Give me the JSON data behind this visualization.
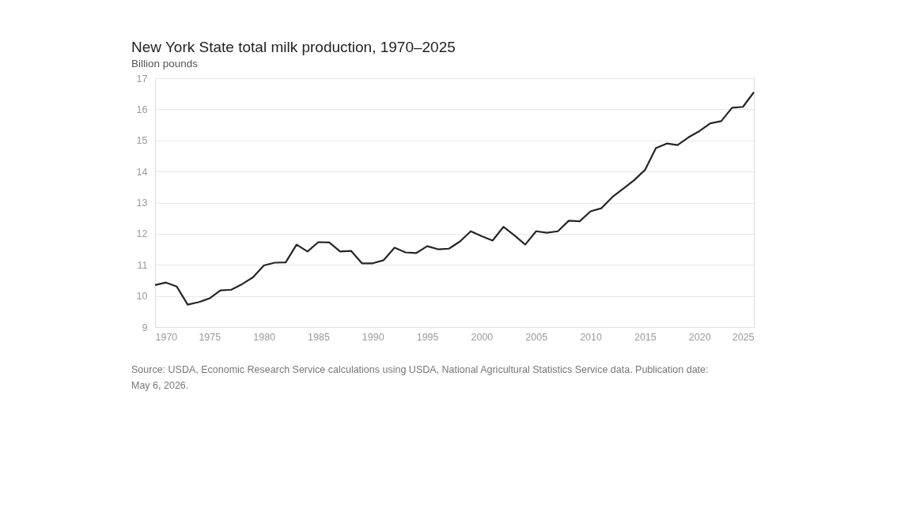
{
  "chart_data": {
    "type": "line",
    "title": "New York State total milk production, 1970–2025",
    "subtitle": "Billion pounds",
    "x": [
      1970,
      1971,
      1972,
      1973,
      1974,
      1975,
      1976,
      1977,
      1978,
      1979,
      1980,
      1981,
      1982,
      1983,
      1984,
      1985,
      1986,
      1987,
      1988,
      1989,
      1990,
      1991,
      1992,
      1993,
      1994,
      1995,
      1996,
      1997,
      1998,
      1999,
      2000,
      2001,
      2002,
      2003,
      2004,
      2005,
      2006,
      2007,
      2008,
      2009,
      2010,
      2011,
      2012,
      2013,
      2014,
      2015,
      2016,
      2017,
      2018,
      2019,
      2020,
      2021,
      2022,
      2023,
      2024,
      2025
    ],
    "series": [
      {
        "color": "#262626",
        "values": [
          10.35,
          10.43,
          10.3,
          9.72,
          9.8,
          9.92,
          10.18,
          10.2,
          10.38,
          10.6,
          10.98,
          11.07,
          11.08,
          11.65,
          11.43,
          11.73,
          11.72,
          11.43,
          11.45,
          11.05,
          11.05,
          11.15,
          11.55,
          11.4,
          11.38,
          11.6,
          11.5,
          11.52,
          11.75,
          12.08,
          11.92,
          11.78,
          12.22,
          11.95,
          11.65,
          12.08,
          12.03,
          12.08,
          12.42,
          12.4,
          12.72,
          12.82,
          13.18,
          13.45,
          13.72,
          14.05,
          14.75,
          14.9,
          14.85,
          15.1,
          15.3,
          15.55,
          15.62,
          16.05,
          16.08,
          16.55
        ]
      }
    ],
    "xlim": [
      1970,
      2025
    ],
    "xticks": [
      1970,
      1975,
      1980,
      1985,
      1990,
      1995,
      2000,
      2005,
      2010,
      2015,
      2020,
      2025
    ],
    "ylim": [
      9,
      17
    ],
    "yticks": [
      9,
      10,
      11,
      12,
      13,
      14,
      15,
      16,
      17
    ],
    "grid": "y",
    "legend": false,
    "marker": "none",
    "line_style": "solid",
    "annotations": [
      "Source: USDA, Economic Research Service calculations using USDA, National Agricultural Statistics Service data. Publication date: May 6, 2026."
    ]
  }
}
